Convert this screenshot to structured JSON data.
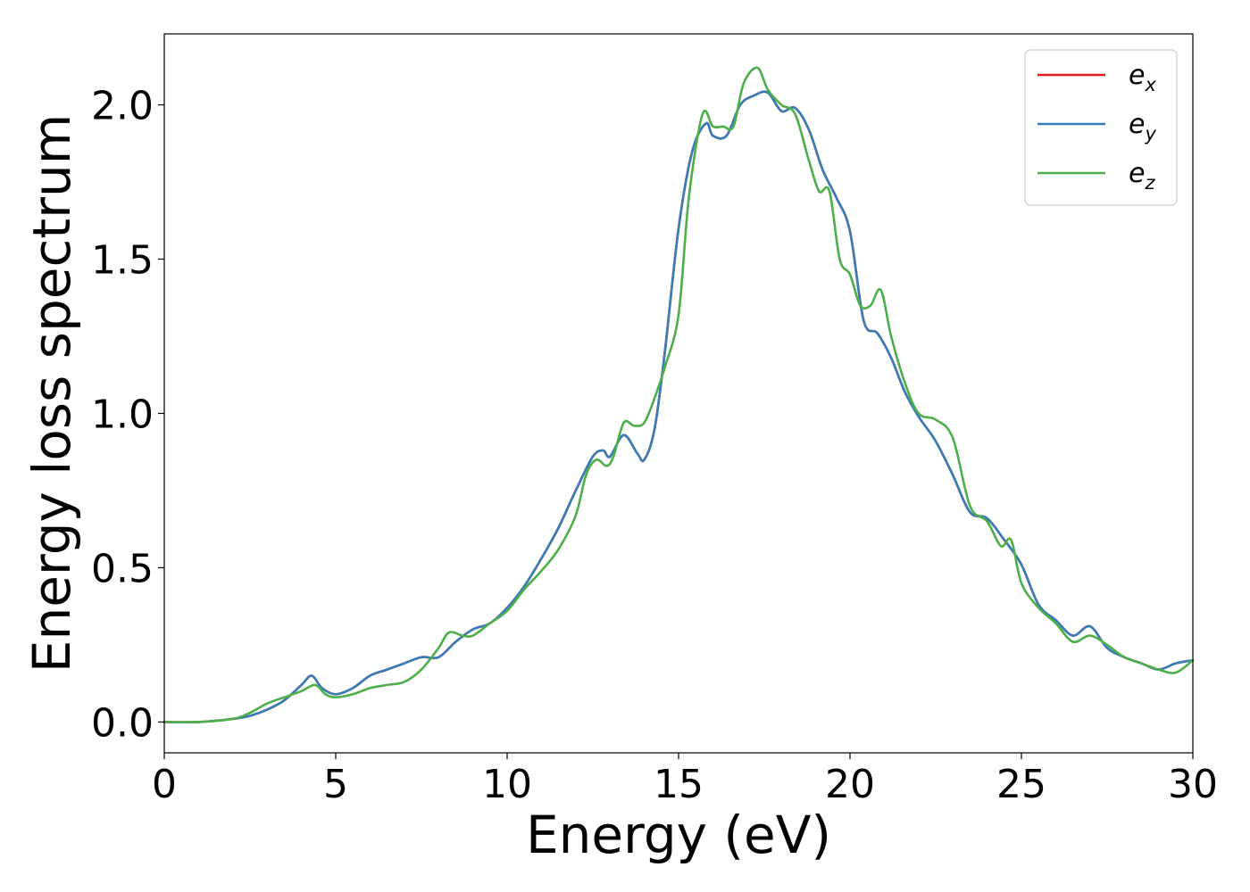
{
  "chart_data": {
    "type": "line",
    "title": "",
    "xlabel": "Energy (eV)",
    "ylabel": "Energy loss spectrum",
    "xlim": [
      0,
      30
    ],
    "ylim": [
      -0.1,
      2.23
    ],
    "xticks": [
      0,
      5,
      10,
      15,
      20,
      25,
      30
    ],
    "xtick_labels": [
      "0",
      "5",
      "10",
      "15",
      "20",
      "25",
      "30"
    ],
    "yticks": [
      0.0,
      0.5,
      1.0,
      1.5,
      2.0
    ],
    "ytick_labels": [
      "0.0",
      "0.5",
      "1.0",
      "1.5",
      "2.0"
    ],
    "grid": false,
    "legend_position": "top-right",
    "series": [
      {
        "name": "e",
        "subscript": "x",
        "color": "#e41a1c",
        "x": [
          0,
          1,
          2,
          2.5,
          3,
          3.5,
          4,
          4.3,
          4.6,
          5,
          5.5,
          6,
          6.5,
          7,
          7.5,
          8,
          8.5,
          9,
          9.5,
          10,
          10.5,
          11,
          11.5,
          12,
          12.5,
          12.8,
          13,
          13.4,
          13.8,
          14,
          14.3,
          14.6,
          15,
          15.4,
          15.8,
          16,
          16.4,
          16.8,
          17.2,
          17.6,
          18,
          18.4,
          18.8,
          19.2,
          19.6,
          20,
          20.4,
          20.8,
          21.2,
          21.6,
          22,
          22.5,
          23,
          23.5,
          24,
          24.5,
          25,
          25.5,
          26,
          26.5,
          27,
          27.5,
          28,
          28.5,
          29,
          29.5,
          30
        ],
        "values": [
          0,
          0,
          0.01,
          0.02,
          0.04,
          0.07,
          0.12,
          0.15,
          0.11,
          0.09,
          0.11,
          0.15,
          0.17,
          0.19,
          0.21,
          0.21,
          0.26,
          0.3,
          0.32,
          0.37,
          0.44,
          0.53,
          0.63,
          0.75,
          0.86,
          0.88,
          0.86,
          0.93,
          0.87,
          0.85,
          0.95,
          1.2,
          1.6,
          1.85,
          1.94,
          1.9,
          1.9,
          2.0,
          2.03,
          2.04,
          1.98,
          1.99,
          1.92,
          1.79,
          1.7,
          1.59,
          1.3,
          1.26,
          1.18,
          1.07,
          0.99,
          0.91,
          0.8,
          0.68,
          0.66,
          0.59,
          0.51,
          0.38,
          0.33,
          0.28,
          0.31,
          0.24,
          0.21,
          0.19,
          0.17,
          0.19,
          0.2
        ]
      },
      {
        "name": "e",
        "subscript": "y",
        "color": "#377eb8",
        "x": [
          0,
          1,
          2,
          2.5,
          3,
          3.5,
          4,
          4.3,
          4.6,
          5,
          5.5,
          6,
          6.5,
          7,
          7.5,
          8,
          8.5,
          9,
          9.5,
          10,
          10.5,
          11,
          11.5,
          12,
          12.5,
          12.8,
          13,
          13.4,
          13.8,
          14,
          14.3,
          14.6,
          15,
          15.4,
          15.8,
          16,
          16.4,
          16.8,
          17.2,
          17.6,
          18,
          18.4,
          18.8,
          19.2,
          19.6,
          20,
          20.4,
          20.8,
          21.2,
          21.6,
          22,
          22.5,
          23,
          23.5,
          24,
          24.5,
          25,
          25.5,
          26,
          26.5,
          27,
          27.5,
          28,
          28.5,
          29,
          29.5,
          30
        ],
        "values": [
          0,
          0,
          0.01,
          0.02,
          0.04,
          0.07,
          0.12,
          0.15,
          0.11,
          0.09,
          0.11,
          0.15,
          0.17,
          0.19,
          0.21,
          0.21,
          0.26,
          0.3,
          0.32,
          0.37,
          0.44,
          0.53,
          0.63,
          0.75,
          0.86,
          0.88,
          0.86,
          0.93,
          0.87,
          0.85,
          0.95,
          1.2,
          1.6,
          1.85,
          1.94,
          1.9,
          1.9,
          2.0,
          2.03,
          2.04,
          1.98,
          1.99,
          1.92,
          1.79,
          1.7,
          1.59,
          1.3,
          1.26,
          1.18,
          1.07,
          0.99,
          0.91,
          0.8,
          0.68,
          0.66,
          0.59,
          0.51,
          0.38,
          0.33,
          0.28,
          0.31,
          0.24,
          0.21,
          0.19,
          0.17,
          0.19,
          0.2
        ]
      },
      {
        "name": "e",
        "subscript": "z",
        "color": "#4daf4a",
        "x": [
          0,
          1,
          2,
          2.5,
          3,
          3.5,
          4,
          4.4,
          4.7,
          5,
          5.5,
          6,
          6.5,
          7,
          7.5,
          8,
          8.3,
          8.7,
          9,
          9.5,
          10,
          10.5,
          11,
          11.5,
          12,
          12.3,
          12.6,
          12.9,
          13.1,
          13.4,
          13.7,
          14,
          14.3,
          14.6,
          15,
          15.3,
          15.7,
          16,
          16.3,
          16.6,
          16.9,
          17.3,
          17.6,
          18,
          18.4,
          18.8,
          19.1,
          19.4,
          19.7,
          20,
          20.3,
          20.6,
          20.9,
          21.2,
          21.6,
          22,
          22.5,
          23,
          23.5,
          24,
          24.4,
          24.7,
          25,
          25.5,
          26,
          26.5,
          27,
          27.5,
          28,
          28.5,
          29,
          29.5,
          30
        ],
        "values": [
          0,
          0,
          0.01,
          0.03,
          0.06,
          0.08,
          0.1,
          0.12,
          0.09,
          0.08,
          0.09,
          0.11,
          0.12,
          0.13,
          0.17,
          0.24,
          0.29,
          0.28,
          0.28,
          0.32,
          0.36,
          0.43,
          0.49,
          0.56,
          0.67,
          0.8,
          0.85,
          0.83,
          0.86,
          0.97,
          0.96,
          0.97,
          1.05,
          1.15,
          1.32,
          1.7,
          1.97,
          1.93,
          1.93,
          1.93,
          2.07,
          2.12,
          2.05,
          2.0,
          1.97,
          1.82,
          1.72,
          1.72,
          1.5,
          1.45,
          1.35,
          1.35,
          1.4,
          1.25,
          1.1,
          1.0,
          0.98,
          0.92,
          0.7,
          0.65,
          0.57,
          0.59,
          0.45,
          0.37,
          0.32,
          0.26,
          0.28,
          0.25,
          0.21,
          0.19,
          0.17,
          0.16,
          0.2
        ]
      }
    ]
  }
}
